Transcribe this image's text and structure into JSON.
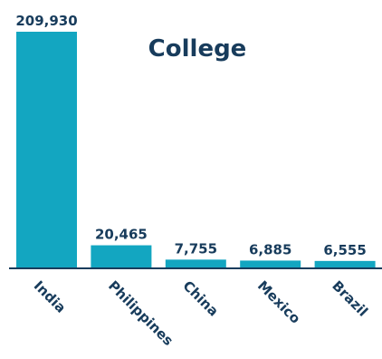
{
  "chart_data": {
    "type": "bar",
    "title": "College",
    "categories": [
      "India",
      "Philippines",
      "China",
      "Mexico",
      "Brazil"
    ],
    "values": [
      209930,
      20465,
      7755,
      6885,
      6555
    ],
    "value_labels": [
      "209,930",
      "20,465",
      "7,755",
      "6,885",
      "6,555"
    ],
    "xlabel": "",
    "ylabel": "",
    "ylim": [
      0,
      209930
    ],
    "grid": false,
    "legend": "none",
    "bar_color": "#13a6c1",
    "axis_color": "#183c5c",
    "text_color": "#183c5c"
  }
}
